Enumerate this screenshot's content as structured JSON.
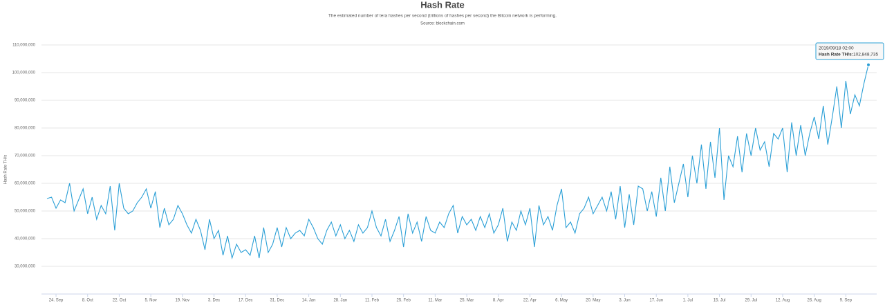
{
  "chart_data": {
    "type": "line",
    "title": "Hash Rate",
    "subtitle": "The estimated number of tera hashes per second (trillions of hashes per second) the Bitcoin network is performing.",
    "source": "Source: blockchain.com",
    "y_label": "Hash Rate TH/s",
    "categories": [
      null,
      null,
      "24. Sep",
      null,
      null,
      null,
      null,
      null,
      null,
      "8. Oct",
      null,
      null,
      null,
      null,
      null,
      null,
      "22. Oct",
      null,
      null,
      null,
      null,
      null,
      null,
      "5. Nov",
      null,
      null,
      null,
      null,
      null,
      null,
      "19. Nov",
      null,
      null,
      null,
      null,
      null,
      null,
      "3. Dec",
      null,
      null,
      null,
      null,
      null,
      null,
      "17. Dec",
      null,
      null,
      null,
      null,
      null,
      null,
      "31. Dec",
      null,
      null,
      null,
      null,
      null,
      null,
      "14. Jan",
      null,
      null,
      null,
      null,
      null,
      null,
      "28. Jan",
      null,
      null,
      null,
      null,
      null,
      null,
      "11. Feb",
      null,
      null,
      null,
      null,
      null,
      null,
      "25. Feb",
      null,
      null,
      null,
      null,
      null,
      null,
      "11. Mar",
      null,
      null,
      null,
      null,
      null,
      null,
      "25. Mar",
      null,
      null,
      null,
      null,
      null,
      null,
      "8. Apr",
      null,
      null,
      null,
      null,
      null,
      null,
      "22. Apr",
      null,
      null,
      null,
      null,
      null,
      null,
      "6. May",
      null,
      null,
      null,
      null,
      null,
      null,
      "20. May",
      null,
      null,
      null,
      null,
      null,
      null,
      "3. Jun",
      null,
      null,
      null,
      null,
      null,
      null,
      "17. Jun",
      null,
      null,
      null,
      null,
      null,
      null,
      "1. Jul",
      null,
      null,
      null,
      null,
      null,
      null,
      "15. Jul",
      null,
      null,
      null,
      null,
      null,
      null,
      "29. Jul",
      null,
      null,
      null,
      null,
      null,
      null,
      "12. Aug",
      null,
      null,
      null,
      null,
      null,
      null,
      "26. Aug",
      null,
      null,
      null,
      null,
      null,
      null,
      "9. Sep",
      null,
      null,
      null,
      null,
      null
    ],
    "series": [
      {
        "name": "Hash Rate TH/s",
        "color": "#2a9fd6",
        "values": [
          54500000,
          55000000,
          51000000,
          54000000,
          53000000,
          60000000,
          50000000,
          54000000,
          58000000,
          49000000,
          55000000,
          47000000,
          52000000,
          49000000,
          59000000,
          43000000,
          60000000,
          51000000,
          49000000,
          50000000,
          53000000,
          55000000,
          58000000,
          51000000,
          57000000,
          44000000,
          51000000,
          45000000,
          47000000,
          52000000,
          49000000,
          45000000,
          42000000,
          47000000,
          43000000,
          36000000,
          47000000,
          40000000,
          43000000,
          34000000,
          41000000,
          33000000,
          38000000,
          35000000,
          36000000,
          34000000,
          41000000,
          33000000,
          44000000,
          35000000,
          38000000,
          44000000,
          37000000,
          44000000,
          40000000,
          42000000,
          43000000,
          41000000,
          47000000,
          44000000,
          40000000,
          38000000,
          43000000,
          46000000,
          41000000,
          45000000,
          40000000,
          43000000,
          39000000,
          45000000,
          42000000,
          44000000,
          50000000,
          44000000,
          41000000,
          47000000,
          39000000,
          43000000,
          48000000,
          37000000,
          49000000,
          42000000,
          46000000,
          39000000,
          48000000,
          43000000,
          42000000,
          46000000,
          44000000,
          49000000,
          52000000,
          42000000,
          48000000,
          45000000,
          47000000,
          43000000,
          48000000,
          44000000,
          49000000,
          42000000,
          45000000,
          51000000,
          39000000,
          46000000,
          43000000,
          50000000,
          45000000,
          51000000,
          37000000,
          52000000,
          45000000,
          48000000,
          43000000,
          52000000,
          58000000,
          44000000,
          46000000,
          42000000,
          49000000,
          51000000,
          55000000,
          49000000,
          52000000,
          55000000,
          50000000,
          57000000,
          47000000,
          59000000,
          44000000,
          56000000,
          45000000,
          59000000,
          58000000,
          50000000,
          57000000,
          48000000,
          62000000,
          50000000,
          66000000,
          53000000,
          60000000,
          67000000,
          55000000,
          70000000,
          60000000,
          74000000,
          58000000,
          75000000,
          62000000,
          80000000,
          54000000,
          70000000,
          66000000,
          77000000,
          64000000,
          78000000,
          70000000,
          80000000,
          72000000,
          75000000,
          66000000,
          78000000,
          76000000,
          80000000,
          64000000,
          82000000,
          70000000,
          81000000,
          70000000,
          78000000,
          84000000,
          76000000,
          88000000,
          74000000,
          84000000,
          95000000,
          80000000,
          97000000,
          85000000,
          92000000,
          88000000,
          96000000,
          102848735
        ]
      }
    ],
    "ylim": [
      20000000,
      112500000
    ],
    "yticks": [
      {
        "value": 30000000,
        "label": "30,000,000"
      },
      {
        "value": 40000000,
        "label": "40,000,000"
      },
      {
        "value": 50000000,
        "label": "50,000,000"
      },
      {
        "value": 60000000,
        "label": "60,000,000"
      },
      {
        "value": 70000000,
        "label": "70,000,000"
      },
      {
        "value": 80000000,
        "label": "80,000,000"
      },
      {
        "value": 90000000,
        "label": "90,000,000"
      },
      {
        "value": 100000000,
        "label": "100,000,000"
      },
      {
        "value": 110000000,
        "label": "110,000,000"
      }
    ],
    "grid": true,
    "tooltip": {
      "date": "2019/09/18 02:00",
      "label": "Hash Rate TH/s:",
      "value": {
        "value": 102848735,
        "label": "102,848,735"
      }
    }
  }
}
